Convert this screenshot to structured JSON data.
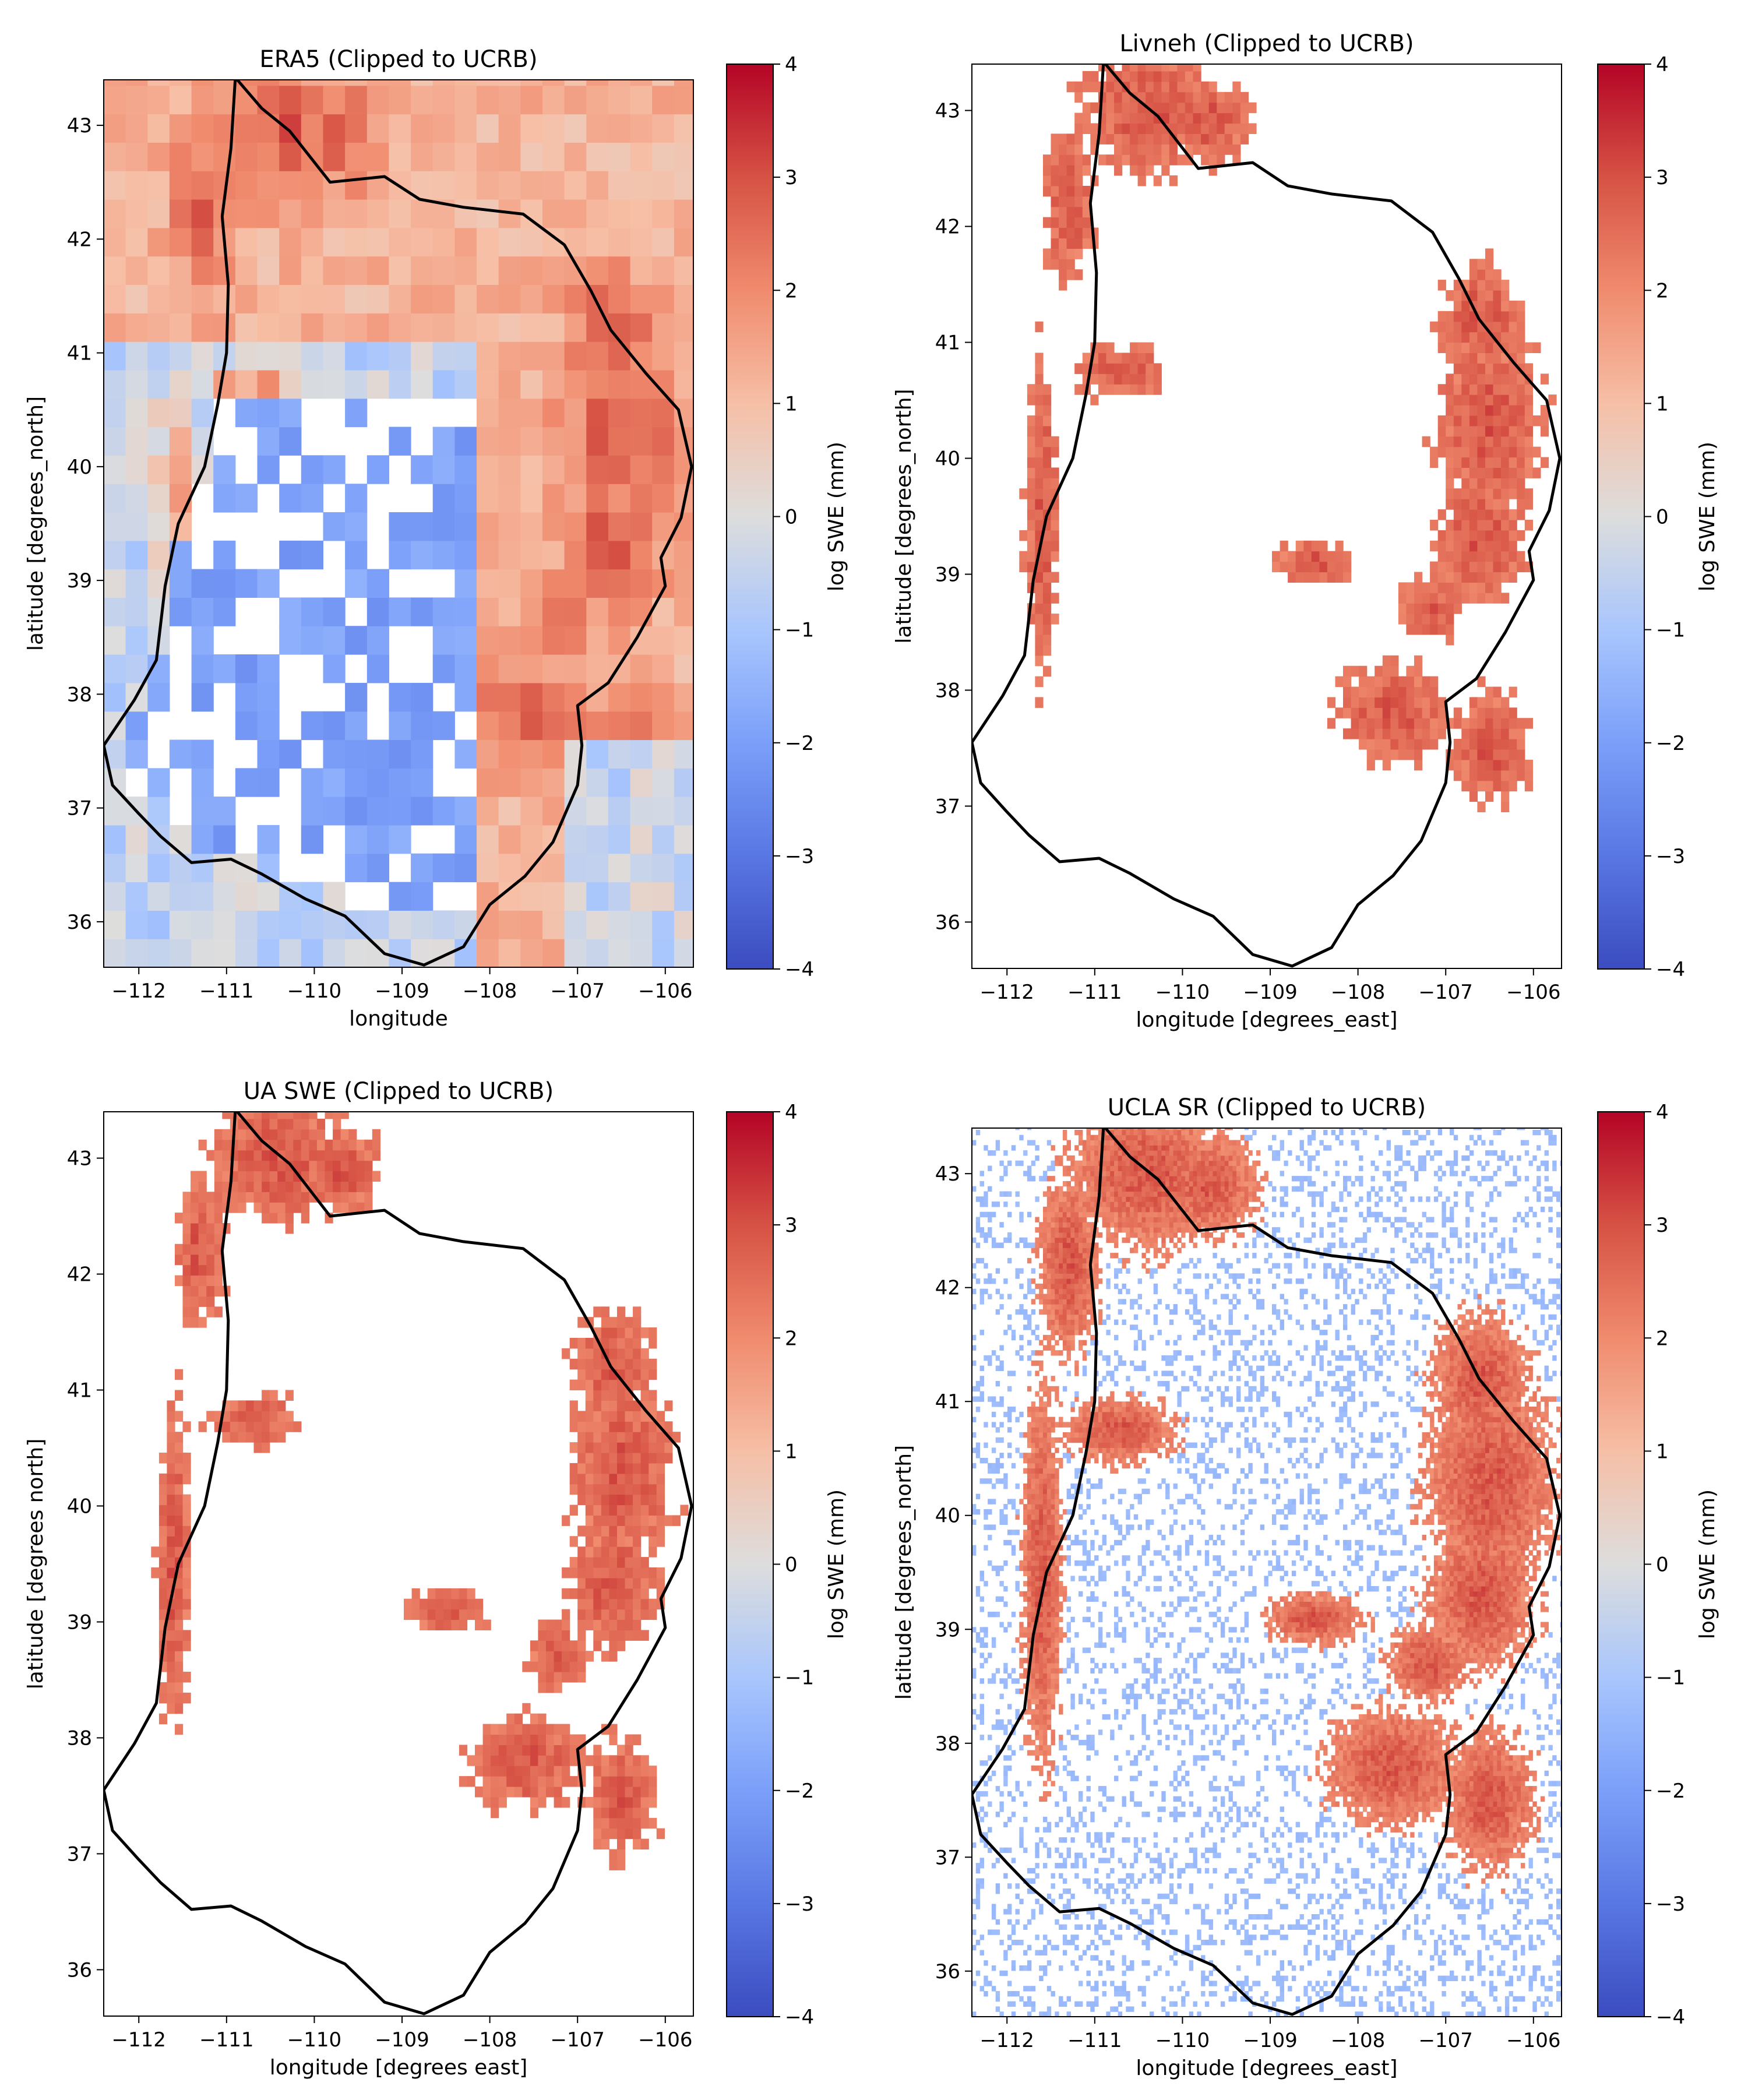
{
  "figure": {
    "colormap": {
      "name": "coolwarm",
      "low": "#3b4cc0",
      "mid": "#dddddd",
      "high": "#b40426"
    },
    "basin_outline_color": "#000000",
    "panels": [
      {
        "id": "era5",
        "title": "ERA5 (Clipped to UCRB)",
        "xlabel": "longitude",
        "ylabel": "latitude [degrees_north]",
        "colorbar_label": "log SWE (mm)",
        "xticks": [
          "−112",
          "−111",
          "−110",
          "−109",
          "−108",
          "−107",
          "−106"
        ],
        "yticks": [
          "36",
          "37",
          "38",
          "39",
          "40",
          "41",
          "42",
          "43"
        ],
        "cbar_ticks": [
          "4",
          "3",
          "2",
          "1",
          "0",
          "−1",
          "−2",
          "−3",
          "−4"
        ],
        "style": "coarse"
      },
      {
        "id": "livneh",
        "title": "Livneh (Clipped to UCRB)",
        "xlabel": "longitude [degrees_east]",
        "ylabel": "latitude [degrees_north]",
        "colorbar_label": "log SWE (mm)",
        "xticks": [
          "−112",
          "−111",
          "−110",
          "−109",
          "−108",
          "−107",
          "−106"
        ],
        "yticks": [
          "36",
          "37",
          "38",
          "39",
          "40",
          "41",
          "42",
          "43"
        ],
        "cbar_ticks": [
          "4",
          "3",
          "2",
          "1",
          "0",
          "−1",
          "−2",
          "−3",
          "−4"
        ],
        "style": "patchy"
      },
      {
        "id": "ua-swe",
        "title": "UA SWE (Clipped to UCRB)",
        "xlabel": "longitude [degrees east]",
        "ylabel": "latitude [degrees north]",
        "colorbar_label": "log SWE (mm)",
        "xticks": [
          "−112",
          "−111",
          "−110",
          "−109",
          "−108",
          "−107",
          "−106"
        ],
        "yticks": [
          "36",
          "37",
          "38",
          "39",
          "40",
          "41",
          "42",
          "43"
        ],
        "cbar_ticks": [
          "4",
          "3",
          "2",
          "1",
          "0",
          "−1",
          "−2",
          "−3",
          "−4"
        ],
        "style": "patchy"
      },
      {
        "id": "ucla-sr",
        "title": "UCLA SR (Clipped to UCRB)",
        "xlabel": "longitude [degrees_east]",
        "ylabel": "latitude [degrees_north]",
        "colorbar_label": "log SWE (mm)",
        "xticks": [
          "−112",
          "−111",
          "−110",
          "−109",
          "−108",
          "−107",
          "−106"
        ],
        "yticks": [
          "36",
          "37",
          "38",
          "39",
          "40",
          "41",
          "42",
          "43"
        ],
        "cbar_ticks": [
          "4",
          "3",
          "2",
          "1",
          "0",
          "−1",
          "−2",
          "−3",
          "−4"
        ],
        "style": "fine"
      }
    ]
  }
}
